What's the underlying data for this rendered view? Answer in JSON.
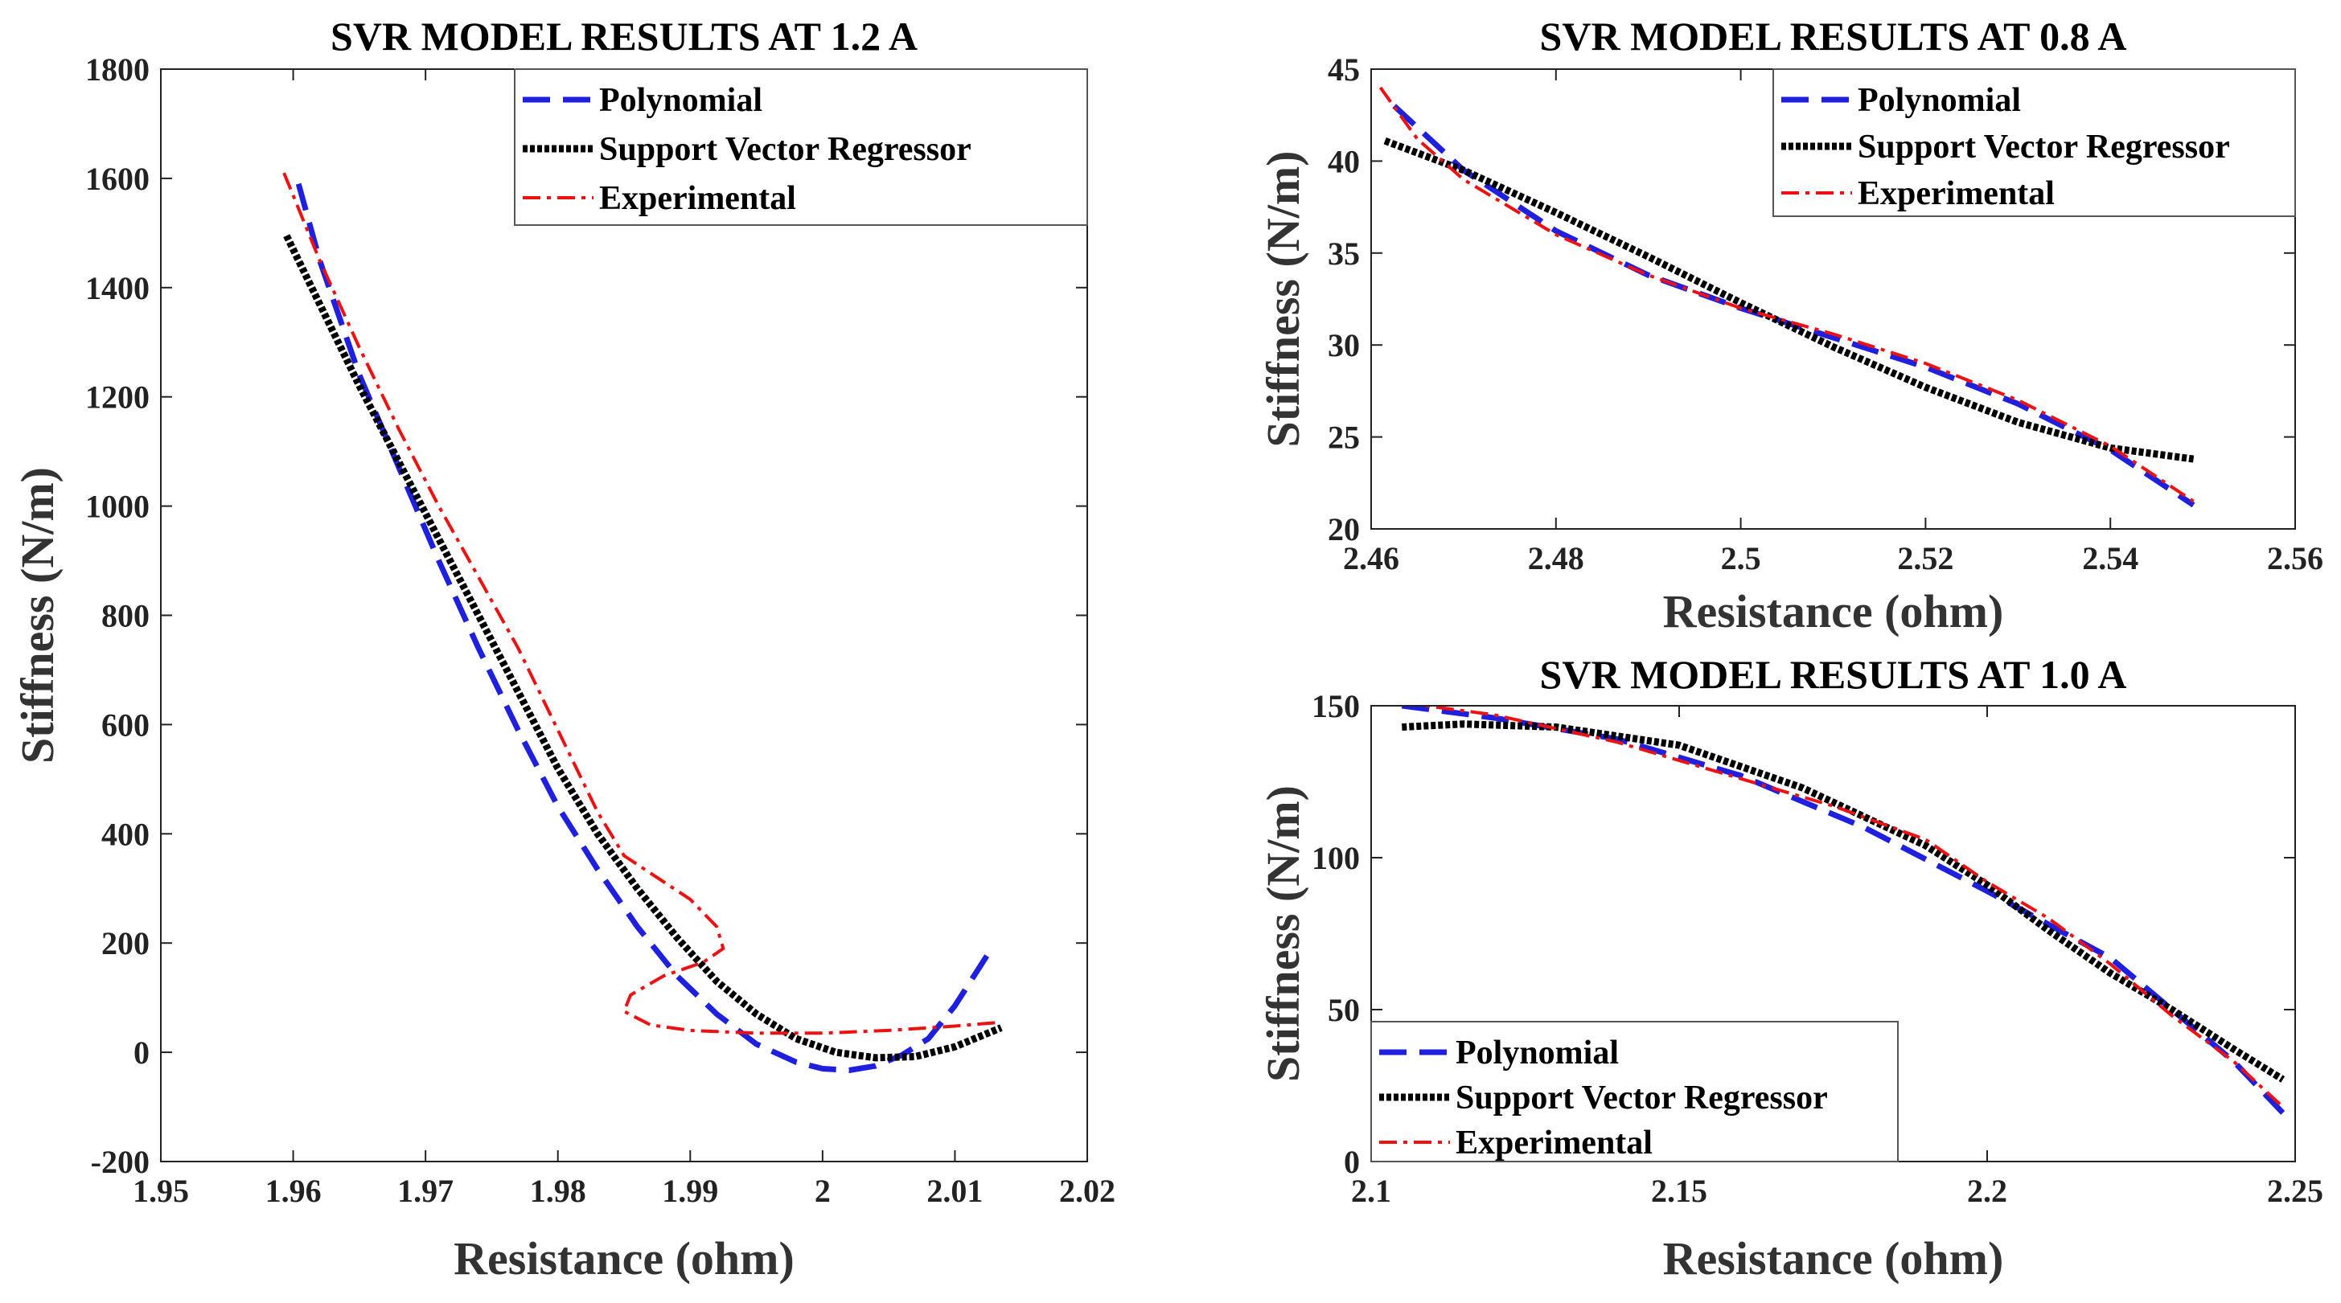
{
  "chart_data": [
    {
      "type": "line",
      "title": "SVR MODEL  RESULTS AT 1.2 A",
      "xlabel": "Resistance (ohm)",
      "ylabel": "Stiffness (N/m)",
      "xlim": [
        1.95,
        2.02
      ],
      "ylim": [
        -200,
        1800
      ],
      "xticks": [
        1.95,
        1.96,
        1.97,
        1.98,
        1.99,
        2.0,
        2.01,
        2.02
      ],
      "xtick_labels": [
        "1.95",
        "1.96",
        "1.97",
        "1.98",
        "1.99",
        "2",
        "2.01",
        "2.02"
      ],
      "yticks": [
        -200,
        0,
        200,
        400,
        600,
        800,
        1000,
        1200,
        1400,
        1600,
        1800
      ],
      "ytick_labels": [
        "-200",
        "0",
        "200",
        "400",
        "600",
        "800",
        "1000",
        "1200",
        "1400",
        "1600",
        "1800"
      ],
      "legend": {
        "position": "top-right",
        "entries": [
          "Polynomial",
          "Support Vector Regressor",
          "Experimental"
        ]
      },
      "series": [
        {
          "name": "Polynomial",
          "color": "#1f1fe0",
          "style": "dashed",
          "x": [
            1.9604,
            1.962,
            1.965,
            1.968,
            1.971,
            1.974,
            1.977,
            1.98,
            1.983,
            1.986,
            1.989,
            1.992,
            1.995,
            1.998,
            2.0,
            2.002,
            2.004,
            2.006,
            2.008,
            2.01,
            2.0125
          ],
          "y": [
            1590,
            1450,
            1240,
            1070,
            900,
            740,
            590,
            450,
            335,
            230,
            140,
            70,
            15,
            -18,
            -30,
            -33,
            -25,
            -5,
            25,
            85,
            180
          ]
        },
        {
          "name": "Support Vector Regressor",
          "color": "#000000",
          "style": "dotted",
          "x": [
            1.9595,
            1.962,
            1.965,
            1.968,
            1.971,
            1.974,
            1.977,
            1.98,
            1.983,
            1.986,
            1.989,
            1.992,
            1.995,
            1.998,
            2.001,
            2.004,
            2.007,
            2.01,
            2.0135
          ],
          "y": [
            1495,
            1370,
            1220,
            1080,
            940,
            800,
            660,
            520,
            400,
            300,
            210,
            130,
            70,
            25,
            0,
            -10,
            -8,
            10,
            45
          ]
        },
        {
          "name": "Experimental",
          "color": "#ee1111",
          "style": "dashdot",
          "x": [
            1.9593,
            1.962,
            1.965,
            1.968,
            1.971,
            1.974,
            1.977,
            1.98,
            1.983,
            1.985,
            1.9875,
            1.99,
            1.992,
            1.9925,
            1.991,
            1.988,
            1.9855,
            1.985,
            1.987,
            1.99,
            1.995,
            2.0,
            2.005,
            2.01,
            2.0135
          ],
          "y": [
            1610,
            1450,
            1290,
            1140,
            1000,
            870,
            740,
            590,
            440,
            360,
            320,
            280,
            230,
            190,
            165,
            140,
            105,
            75,
            50,
            40,
            35,
            35,
            40,
            48,
            55
          ]
        }
      ]
    },
    {
      "type": "line",
      "title": "SVR MODEL RESULTS AT 0.8 A",
      "xlabel": "Resistance (ohm)",
      "ylabel": "Stiffness (N/m)",
      "xlim": [
        2.46,
        2.56
      ],
      "ylim": [
        20,
        45
      ],
      "xticks": [
        2.46,
        2.48,
        2.5,
        2.52,
        2.54,
        2.56
      ],
      "xtick_labels": [
        "2.46",
        "2.48",
        "2.5",
        "2.52",
        "2.54",
        "2.56"
      ],
      "yticks": [
        20,
        25,
        30,
        35,
        40,
        45
      ],
      "ytick_labels": [
        "20",
        "25",
        "30",
        "35",
        "40",
        "45"
      ],
      "legend": {
        "position": "top-right",
        "entries": [
          "Polynomial",
          "Support Vector Regressor",
          "Experimental"
        ]
      },
      "series": [
        {
          "name": "Polynomial",
          "color": "#1f1fe0",
          "style": "dashed",
          "x": [
            2.4625,
            2.47,
            2.48,
            2.49,
            2.5,
            2.51,
            2.52,
            2.53,
            2.54,
            2.549
          ],
          "y": [
            43.0,
            39.5,
            36.2,
            33.8,
            32.0,
            30.4,
            28.8,
            26.8,
            24.3,
            21.3
          ]
        },
        {
          "name": "Support Vector Regressor",
          "color": "#000000",
          "style": "dotted",
          "x": [
            2.4615,
            2.47,
            2.48,
            2.49,
            2.5,
            2.51,
            2.52,
            2.53,
            2.54,
            2.549
          ],
          "y": [
            41.1,
            39.5,
            37.2,
            34.8,
            32.3,
            29.9,
            27.7,
            25.8,
            24.4,
            23.8
          ]
        },
        {
          "name": "Experimental",
          "color": "#ee1111",
          "style": "dashdot",
          "x": [
            2.461,
            2.465,
            2.47,
            2.48,
            2.49,
            2.5,
            2.51,
            2.52,
            2.53,
            2.54,
            2.549
          ],
          "y": [
            44.0,
            41.2,
            39.0,
            36.0,
            33.8,
            32.0,
            30.6,
            29.0,
            27.0,
            24.5,
            21.5
          ]
        }
      ]
    },
    {
      "type": "line",
      "title": "SVR MODEL RESULTS AT 1.0 A",
      "xlabel": "Resistance (ohm)",
      "ylabel": "Stiffness (N/m)",
      "xlim": [
        2.1,
        2.25
      ],
      "ylim": [
        0,
        150
      ],
      "xticks": [
        2.1,
        2.15,
        2.2,
        2.25
      ],
      "xtick_labels": [
        "2.1",
        "2.15",
        "2.2",
        "2.25"
      ],
      "yticks": [
        0,
        50,
        100,
        150
      ],
      "ytick_labels": [
        "0",
        "50",
        "100",
        "150"
      ],
      "legend": {
        "position": "bottom-left",
        "entries": [
          "Polynomial",
          "Support Vector Regressor",
          "Experimental"
        ]
      },
      "series": [
        {
          "name": "Polynomial",
          "color": "#1f1fe0",
          "style": "dashed",
          "x": [
            2.105,
            2.12,
            2.14,
            2.16,
            2.18,
            2.2,
            2.22,
            2.24,
            2.248
          ],
          "y": [
            150,
            146,
            139,
            127,
            110,
            89,
            67,
            33,
            16
          ]
        },
        {
          "name": "Support Vector Regressor",
          "color": "#000000",
          "style": "dotted",
          "x": [
            2.105,
            2.115,
            2.13,
            2.15,
            2.17,
            2.19,
            2.2,
            2.21,
            2.22,
            2.23,
            2.24,
            2.248
          ],
          "y": [
            143,
            144,
            143,
            137,
            123,
            104,
            91,
            76,
            62,
            50,
            37,
            27
          ]
        },
        {
          "name": "Experimental",
          "color": "#ee1111",
          "style": "dashdot",
          "x": [
            2.105,
            2.12,
            2.14,
            2.16,
            2.175,
            2.19,
            2.2,
            2.21,
            2.22,
            2.23,
            2.24,
            2.248
          ],
          "y": [
            151,
            147,
            138,
            126,
            117,
            106,
            92,
            80,
            65,
            48,
            33,
            18
          ]
        }
      ]
    }
  ]
}
